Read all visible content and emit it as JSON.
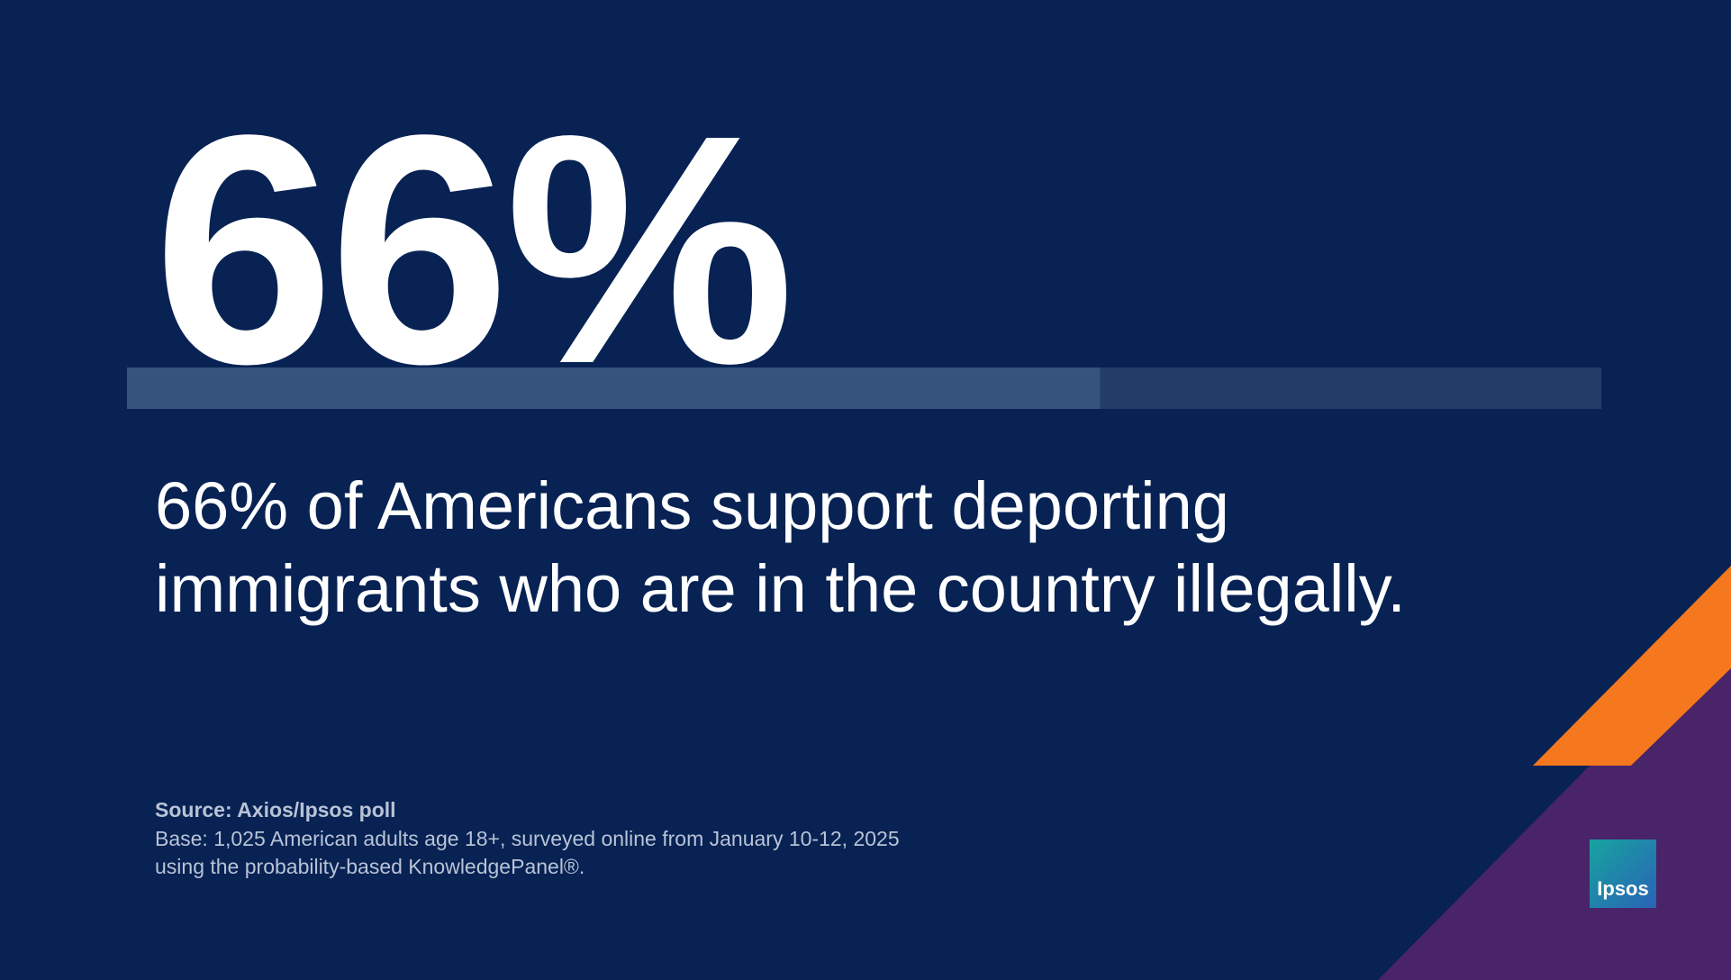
{
  "chart_data": {
    "type": "progress",
    "values": [
      66
    ],
    "value_labels": [
      "66%"
    ],
    "xlim": [
      0,
      100
    ],
    "color": "#36537d",
    "track_color": "#233d68",
    "subtitle": "66% of Americans support deporting immigrants who are in the country illegally.",
    "source": "Source: Axios/Ipsos poll",
    "note": "Base: 1,025 American adults age 18+, surveyed online from January 10-12, 2025 using the probability-based KnowledgePanel®.",
    "logo": "Ipsos"
  }
}
